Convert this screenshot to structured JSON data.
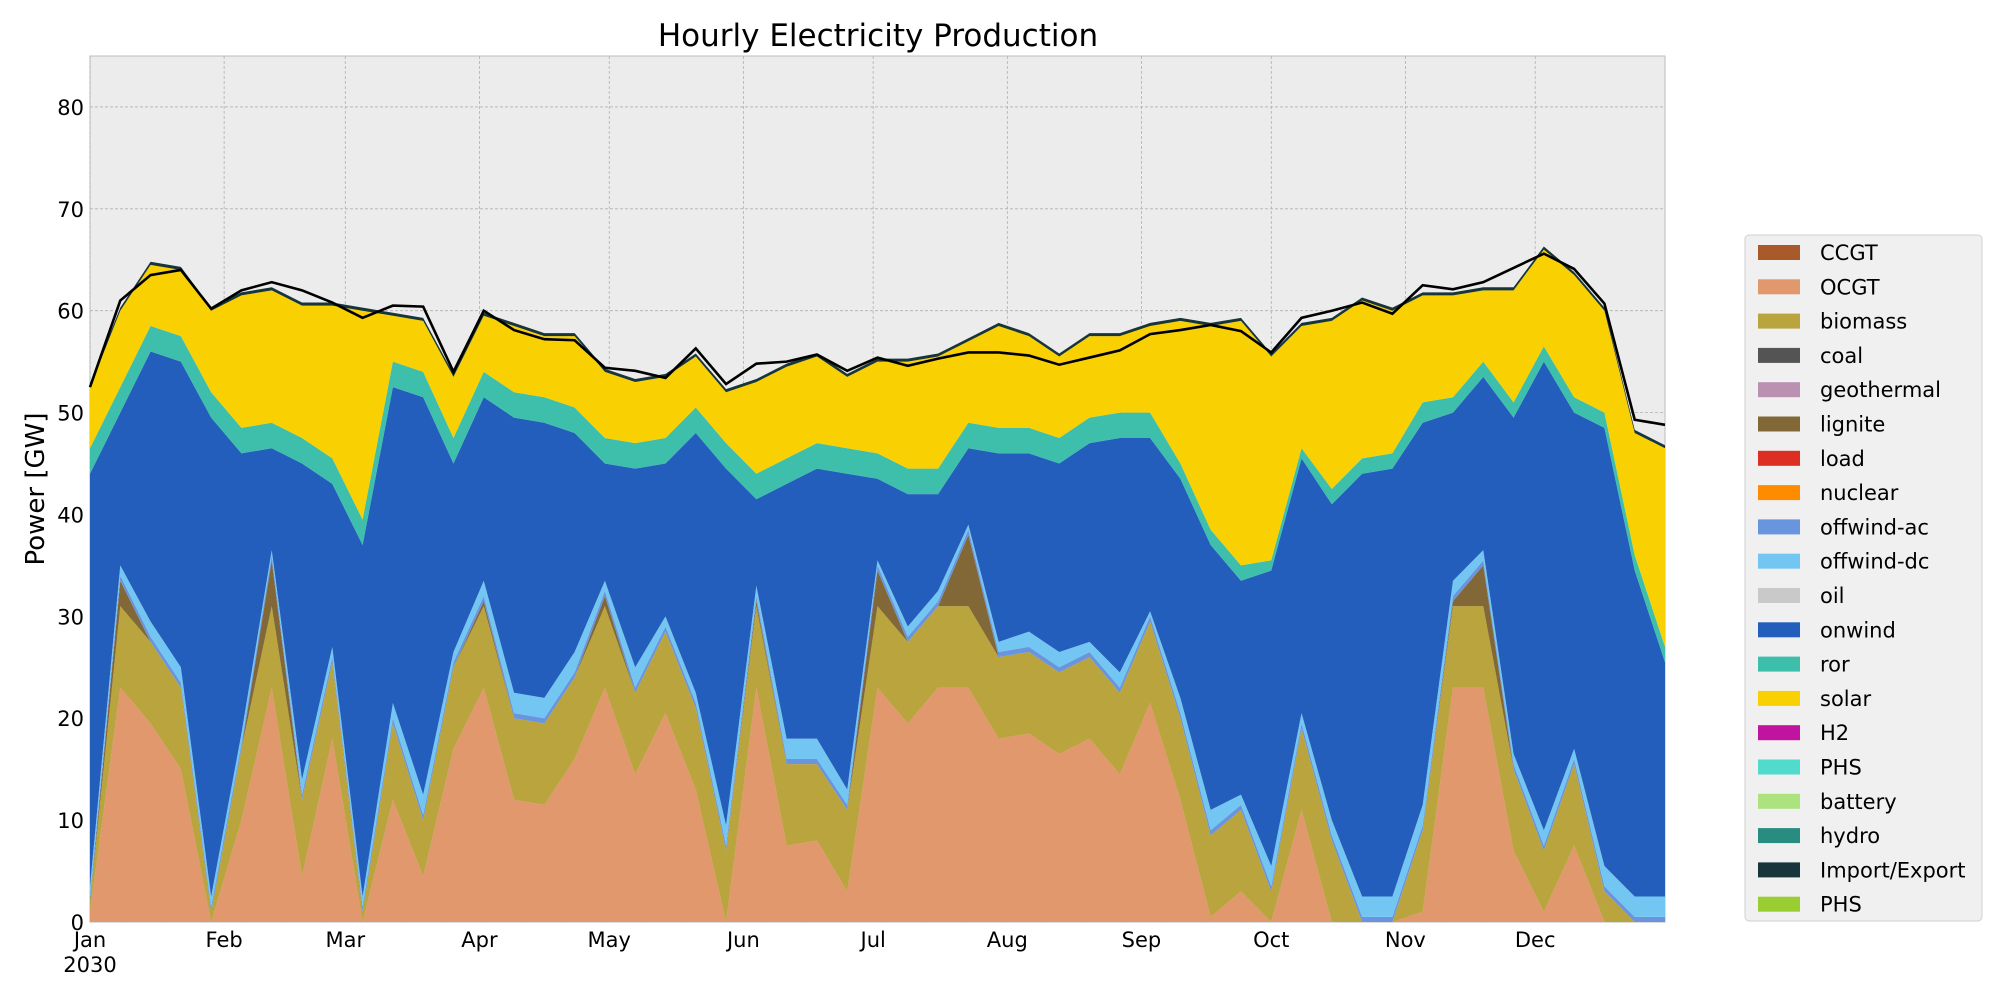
{
  "chart_data": {
    "type": "area",
    "stacked": true,
    "title": "Hourly Electricity Production",
    "ylabel": "Power [GW]",
    "xlabel": "",
    "ylim": [
      0,
      85
    ],
    "yticks": [
      0,
      10,
      20,
      30,
      40,
      50,
      60,
      70,
      80
    ],
    "xlim": [
      "2030-01-01",
      "2030-12-31"
    ],
    "xticks": [
      {
        "date": "2030-01-01",
        "label": "Jan",
        "sublabel": "2030"
      },
      {
        "date": "2030-02-01",
        "label": "Feb",
        "sublabel": ""
      },
      {
        "date": "2030-03-01",
        "label": "Mar",
        "sublabel": ""
      },
      {
        "date": "2030-04-01",
        "label": "Apr",
        "sublabel": ""
      },
      {
        "date": "2030-05-01",
        "label": "May",
        "sublabel": ""
      },
      {
        "date": "2030-06-01",
        "label": "Jun",
        "sublabel": ""
      },
      {
        "date": "2030-07-01",
        "label": "Jul",
        "sublabel": ""
      },
      {
        "date": "2030-08-01",
        "label": "Aug",
        "sublabel": ""
      },
      {
        "date": "2030-09-01",
        "label": "Sep",
        "sublabel": ""
      },
      {
        "date": "2030-10-01",
        "label": "Oct",
        "sublabel": ""
      },
      {
        "date": "2030-11-01",
        "label": "Nov",
        "sublabel": ""
      },
      {
        "date": "2030-12-01",
        "label": "Dec",
        "sublabel": ""
      }
    ],
    "grid": true,
    "legend_position": "right",
    "x": [
      "2030-01-01",
      "2030-01-08",
      "2030-01-15",
      "2030-01-22",
      "2030-01-29",
      "2030-02-05",
      "2030-02-12",
      "2030-02-19",
      "2030-02-26",
      "2030-03-05",
      "2030-03-12",
      "2030-03-19",
      "2030-03-26",
      "2030-04-02",
      "2030-04-09",
      "2030-04-16",
      "2030-04-23",
      "2030-04-30",
      "2030-05-07",
      "2030-05-14",
      "2030-05-21",
      "2030-05-28",
      "2030-06-04",
      "2030-06-11",
      "2030-06-18",
      "2030-06-25",
      "2030-07-02",
      "2030-07-09",
      "2030-07-16",
      "2030-07-23",
      "2030-07-30",
      "2030-08-06",
      "2030-08-13",
      "2030-08-20",
      "2030-08-27",
      "2030-09-03",
      "2030-09-10",
      "2030-09-17",
      "2030-09-24",
      "2030-10-01",
      "2030-10-08",
      "2030-10-15",
      "2030-10-22",
      "2030-10-29",
      "2030-11-05",
      "2030-11-12",
      "2030-11-19",
      "2030-11-26",
      "2030-12-03",
      "2030-12-10",
      "2030-12-17",
      "2030-12-24",
      "2030-12-31"
    ],
    "series": [
      {
        "name": "CCGT",
        "color": "#a85a2a",
        "values": [
          0,
          0,
          0,
          0,
          0,
          0,
          0,
          0,
          0,
          0,
          0,
          0,
          0,
          0,
          0,
          0,
          0,
          0,
          0,
          0,
          0,
          0,
          0,
          0,
          0,
          0,
          0,
          0,
          0,
          0,
          0,
          0,
          0,
          0,
          0,
          0,
          0,
          0,
          0,
          0,
          0,
          0,
          0,
          0,
          0,
          0,
          0,
          0,
          0,
          0,
          0,
          0,
          0
        ]
      },
      {
        "name": "OCGT",
        "color": "#e0986c",
        "values": [
          1,
          23,
          19.5,
          15,
          0,
          10,
          23,
          4.5,
          18,
          0,
          12,
          4.5,
          17,
          23,
          12,
          11.5,
          16,
          23,
          14.5,
          20.5,
          13,
          0,
          23,
          7.5,
          8,
          3,
          23,
          19.5,
          23,
          23,
          18,
          18.5,
          16.5,
          18,
          14.5,
          21.5,
          12,
          0.5,
          3,
          0,
          11,
          0,
          0,
          0,
          1,
          23,
          23,
          7,
          1,
          7.5,
          0,
          0,
          0
        ]
      },
      {
        "name": "biomass",
        "color": "#b9a43e",
        "values": [
          1,
          8,
          8,
          8,
          1,
          7,
          8,
          7.5,
          7.5,
          1,
          7.5,
          5.5,
          8,
          8,
          8,
          8,
          8,
          8,
          8,
          8,
          8,
          7,
          8,
          8,
          7.5,
          8,
          8,
          8,
          8,
          8,
          8,
          8,
          8,
          8,
          8,
          8,
          8,
          8,
          8,
          3,
          8,
          8,
          0,
          0,
          8,
          8,
          8,
          8,
          6,
          8,
          3,
          0,
          0
        ]
      },
      {
        "name": "coal",
        "color": "#545454",
        "values": [
          0,
          0,
          0,
          0,
          0,
          0,
          0,
          0,
          0,
          0,
          0,
          0,
          0,
          0,
          0,
          0,
          0,
          0,
          0,
          0,
          0,
          0,
          0,
          0,
          0,
          0,
          0,
          0,
          0,
          0,
          0,
          0,
          0,
          0,
          0,
          0,
          0,
          0,
          0,
          0,
          0,
          0,
          0,
          0,
          0,
          0,
          0,
          0,
          0,
          0,
          0,
          0,
          0
        ]
      },
      {
        "name": "geothermal",
        "color": "#ba91b1",
        "values": [
          0,
          0,
          0,
          0,
          0,
          0,
          0,
          0,
          0,
          0,
          0,
          0,
          0,
          0,
          0,
          0,
          0,
          0,
          0,
          0,
          0,
          0,
          0,
          0,
          0,
          0,
          0,
          0,
          0,
          0,
          0,
          0,
          0,
          0,
          0,
          0,
          0,
          0,
          0,
          0,
          0,
          0,
          0,
          0,
          0,
          0,
          0,
          0,
          0,
          0,
          0,
          0,
          0
        ]
      },
      {
        "name": "lignite",
        "color": "#826837",
        "values": [
          0,
          2.5,
          0,
          0,
          0,
          0,
          4.5,
          0,
          0,
          0,
          0,
          0,
          0,
          0.5,
          0,
          0,
          0,
          1,
          0,
          0,
          0,
          0,
          0.5,
          0,
          0,
          0,
          3.5,
          0,
          0,
          7,
          0,
          0,
          0,
          0,
          0,
          0,
          0,
          0,
          0,
          0,
          0,
          0,
          0,
          0,
          0,
          0.5,
          4,
          0,
          0,
          0,
          0,
          0,
          0
        ]
      },
      {
        "name": "load",
        "color": "#dd2e23",
        "values": [
          0,
          0,
          0,
          0,
          0,
          0,
          0,
          0,
          0,
          0,
          0,
          0,
          0,
          0,
          0,
          0,
          0,
          0,
          0,
          0,
          0,
          0,
          0,
          0,
          0,
          0,
          0,
          0,
          0,
          0,
          0,
          0,
          0,
          0,
          0,
          0,
          0,
          0,
          0,
          0,
          0,
          0,
          0,
          0,
          0,
          0,
          0,
          0,
          0,
          0,
          0,
          0,
          0
        ]
      },
      {
        "name": "nuclear",
        "color": "#ff8c00",
        "values": [
          0,
          0,
          0,
          0,
          0,
          0,
          0,
          0,
          0,
          0,
          0,
          0,
          0,
          0,
          0,
          0,
          0,
          0,
          0,
          0,
          0,
          0,
          0,
          0,
          0,
          0,
          0,
          0,
          0,
          0,
          0,
          0,
          0,
          0,
          0,
          0,
          0,
          0,
          0,
          0,
          0,
          0,
          0,
          0,
          0,
          0,
          0,
          0,
          0,
          0,
          0,
          0,
          0
        ]
      },
      {
        "name": "offwind-ac",
        "color": "#6895dd",
        "values": [
          0.5,
          0.5,
          0.5,
          0.5,
          0.5,
          0.5,
          0.5,
          0.5,
          0.5,
          0.5,
          0.5,
          0.5,
          0.5,
          0.5,
          0.5,
          0.5,
          0.5,
          0.5,
          0.5,
          0.5,
          0.5,
          0.5,
          0.5,
          0.5,
          0.5,
          0.5,
          0.5,
          0.5,
          0.5,
          0.5,
          0.5,
          0.5,
          0.5,
          0.5,
          0.5,
          0.5,
          0.5,
          0.5,
          0.5,
          0.5,
          0.5,
          0.5,
          0.5,
          0.5,
          0.5,
          0.5,
          0.5,
          0.5,
          0.5,
          0.5,
          0.5,
          0.5,
          0.5
        ]
      },
      {
        "name": "offwind-dc",
        "color": "#74c6f2",
        "values": [
          1,
          1,
          1.5,
          1.5,
          1,
          1,
          0.5,
          1.5,
          1,
          1,
          1.5,
          2,
          1,
          1.5,
          2,
          2,
          2,
          1,
          2,
          1,
          1,
          2,
          1,
          2,
          2,
          1.5,
          0.5,
          1,
          1,
          0.5,
          1,
          1.5,
          1.5,
          1,
          1.5,
          0.5,
          1.5,
          2,
          1,
          2,
          1,
          1.5,
          2,
          2,
          2,
          1.5,
          1,
          1,
          1.5,
          1,
          2,
          2,
          2
        ]
      },
      {
        "name": "oil",
        "color": "#c9c9c9",
        "values": [
          0,
          0,
          0,
          0,
          0,
          0,
          0,
          0,
          0,
          0,
          0,
          0,
          0,
          0,
          0,
          0,
          0,
          0,
          0,
          0,
          0,
          0,
          0,
          0,
          0,
          0,
          0,
          0,
          0,
          0,
          0,
          0,
          0,
          0,
          0,
          0,
          0,
          0,
          0,
          0,
          0,
          0,
          0,
          0,
          0,
          0,
          0,
          0,
          0,
          0,
          0,
          0,
          0
        ]
      },
      {
        "name": "onwind",
        "color": "#235ebc",
        "values": [
          40.5,
          15,
          26.5,
          30,
          47,
          27.5,
          10,
          31,
          16,
          34.5,
          31,
          39,
          18.5,
          18,
          27,
          27,
          21.5,
          11.5,
          19.5,
          15,
          25.5,
          35,
          8.5,
          25,
          26.5,
          31,
          8,
          13,
          9.5,
          7.5,
          18.5,
          17.5,
          18.5,
          19.5,
          23,
          17,
          21.5,
          26,
          21,
          29,
          25,
          31,
          41.5,
          42,
          37.5,
          16.5,
          17,
          33,
          46,
          33,
          43,
          32,
          23
        ]
      },
      {
        "name": "ror",
        "color": "#3dbfac",
        "values": [
          2.5,
          2.5,
          2.5,
          2.5,
          2.5,
          2.5,
          2.5,
          2.5,
          2.5,
          2.5,
          2.5,
          2.5,
          2.5,
          2.5,
          2.5,
          2.5,
          2.5,
          2.5,
          2.5,
          2.5,
          2.5,
          2.5,
          2.5,
          2.5,
          2.5,
          2.5,
          2.5,
          2.5,
          2.5,
          2.5,
          2.5,
          2.5,
          2.5,
          2.5,
          2.5,
          2.5,
          1.5,
          1.5,
          1.5,
          1,
          1,
          1.5,
          1.5,
          1.5,
          2,
          1.5,
          1.5,
          1.5,
          1.5,
          1.5,
          1.5,
          1.5,
          1.5
        ]
      },
      {
        "name": "solar",
        "color": "#f9d002",
        "values": [
          6,
          7.5,
          6,
          6.5,
          8,
          13,
          13,
          13,
          15,
          20.5,
          4.5,
          5,
          6,
          5.5,
          6.5,
          6,
          7,
          6.5,
          6,
          6,
          5,
          5,
          9,
          9,
          8.5,
          7,
          9,
          10.5,
          11,
          8,
          10,
          9,
          8,
          8,
          7.5,
          8.5,
          14,
          20,
          24,
          20,
          12,
          16.5,
          15.5,
          14,
          10.5,
          10,
          7,
          11,
          9.5,
          12,
          10,
          12,
          19.5
        ]
      },
      {
        "name": "H2",
        "color": "#bf13a0",
        "values": [
          0,
          0,
          0,
          0,
          0,
          0,
          0,
          0,
          0,
          0,
          0,
          0,
          0,
          0,
          0,
          0,
          0,
          0,
          0,
          0,
          0,
          0,
          0,
          0,
          0,
          0,
          0,
          0,
          0,
          0,
          0,
          0,
          0,
          0,
          0,
          0,
          0,
          0,
          0,
          0,
          0,
          0,
          0,
          0,
          0,
          0,
          0,
          0,
          0,
          0,
          0,
          0,
          0
        ]
      },
      {
        "name": "PHS",
        "color": "#51dbcc",
        "values": [
          0,
          0,
          0,
          0,
          0,
          0,
          0,
          0,
          0,
          0,
          0,
          0,
          0,
          0,
          0,
          0,
          0,
          0,
          0,
          0,
          0,
          0,
          0,
          0,
          0,
          0,
          0,
          0,
          0,
          0,
          0,
          0,
          0,
          0,
          0,
          0,
          0,
          0,
          0,
          0,
          0,
          0,
          0,
          0,
          0,
          0,
          0,
          0,
          0,
          0,
          0,
          0,
          0
        ]
      },
      {
        "name": "battery",
        "color": "#ace37f",
        "values": [
          0,
          0,
          0,
          0,
          0,
          0,
          0,
          0,
          0,
          0,
          0,
          0,
          0,
          0,
          0,
          0,
          0,
          0,
          0,
          0,
          0,
          0,
          0,
          0,
          0,
          0,
          0,
          0,
          0,
          0,
          0,
          0,
          0,
          0,
          0,
          0,
          0,
          0,
          0,
          0,
          0,
          0,
          0,
          0,
          0,
          0,
          0,
          0,
          0,
          0,
          0,
          0,
          0
        ]
      },
      {
        "name": "hydro",
        "color": "#298c81",
        "values": [
          0,
          0,
          0,
          0,
          0,
          0,
          0,
          0,
          0,
          0,
          0,
          0,
          0,
          0,
          0,
          0,
          0,
          0,
          0,
          0,
          0,
          0,
          0,
          0,
          0,
          0,
          0,
          0,
          0,
          0,
          0,
          0,
          0,
          0,
          0,
          0,
          0,
          0,
          0,
          0,
          0,
          0,
          0,
          0,
          0,
          0,
          0,
          0,
          0,
          0,
          0,
          0,
          0
        ]
      },
      {
        "name": "Import/Export",
        "color": "#17353a",
        "values": [
          0.3,
          0.3,
          0.3,
          0.3,
          0.3,
          0.3,
          0.3,
          0.3,
          0.3,
          0.3,
          0.3,
          0.3,
          0.3,
          0.3,
          0.3,
          0.3,
          0.3,
          0.3,
          0.3,
          0.3,
          0.3,
          0.3,
          0.3,
          0.3,
          0.3,
          0.3,
          0.3,
          0.3,
          0.3,
          0.3,
          0.3,
          0.3,
          0.3,
          0.3,
          0.3,
          0.3,
          0.3,
          0.3,
          0.3,
          0.3,
          0.3,
          0.3,
          0.3,
          0.3,
          0.3,
          0.3,
          0.3,
          0.3,
          0.3,
          0.3,
          0.3,
          0.3,
          0.3
        ]
      },
      {
        "name": "PHS",
        "color": "#9acd32",
        "values": [
          0,
          0,
          0,
          0,
          0,
          0,
          0,
          0,
          0,
          0,
          0,
          0,
          0,
          0,
          0,
          0,
          0,
          0,
          0,
          0,
          0,
          0,
          0,
          0,
          0,
          0,
          0,
          0,
          0,
          0,
          0,
          0,
          0,
          0,
          0,
          0,
          0,
          0,
          0,
          0,
          0,
          0,
          0,
          0,
          0,
          0,
          0,
          0,
          0,
          0,
          0,
          0,
          0
        ]
      }
    ],
    "total_line": {
      "color": "#000000",
      "values": [
        52.5,
        61,
        63.5,
        64,
        60.2,
        62,
        62.8,
        62,
        60.8,
        59.3,
        60.5,
        60.4,
        54,
        60,
        58.1,
        57.2,
        57.1,
        54.4,
        54.1,
        53.4,
        56.3,
        52.8,
        54.8,
        55,
        55.7,
        54.1,
        55.4,
        54.6,
        55.3,
        55.9,
        55.9,
        55.6,
        54.7,
        55.4,
        56.1,
        57.7,
        58.1,
        58.6,
        58,
        55.9,
        59.3,
        60,
        60.8,
        59.7,
        62.5,
        62.1,
        62.8,
        64.2,
        65.6,
        64.1,
        60.7,
        49.3,
        48.8
      ]
    }
  }
}
